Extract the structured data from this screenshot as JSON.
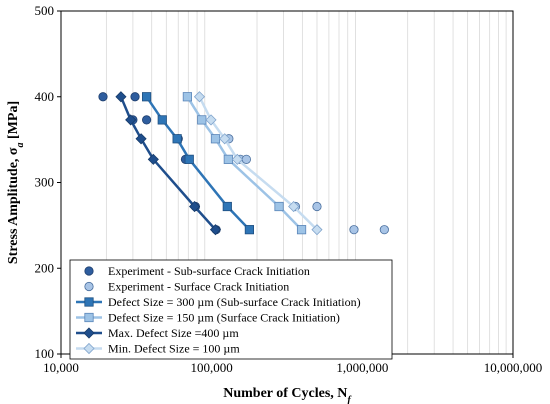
{
  "chart_data": {
    "type": "scatter",
    "xlabel": "Number of Cycles, N",
    "xlabel_sub": "f",
    "ylabel": "Stress Amplitude, σ",
    "ylabel_sub": "a",
    "ylabel_unit": " [MPa]",
    "xscale": "log",
    "xlim": [
      10000,
      10000000
    ],
    "ylim": [
      100,
      500
    ],
    "x_ticks": [
      10000,
      100000,
      1000000,
      10000000
    ],
    "x_tick_labels": [
      "10,000",
      "100,000",
      "1,000,000",
      "10,000,000"
    ],
    "y_ticks": [
      100,
      200,
      300,
      400,
      500
    ],
    "y_tick_labels": [
      "100",
      "200",
      "300",
      "400",
      "500"
    ],
    "grid": "vertical log minor gridlines",
    "legend_placement": "bottom-left",
    "series": [
      {
        "name": "Experiment - Sub-surface Crack Initiation",
        "kind": "points",
        "marker": "circle",
        "color": "#2e5d9e",
        "stroke": "#1f3f6e",
        "points": [
          [
            19000,
            400
          ],
          [
            31000,
            400
          ],
          [
            37000,
            373
          ],
          [
            30000,
            373
          ],
          [
            60000,
            351
          ],
          [
            67000,
            327
          ],
          [
            78000,
            272
          ],
          [
            107000,
            245
          ]
        ]
      },
      {
        "name": "Experiment - Surface Crack Initiation",
        "kind": "points",
        "marker": "circle",
        "color": "#a8c4e6",
        "stroke": "#4a6f9e",
        "points": [
          [
            130000,
            351
          ],
          [
            155000,
            327
          ],
          [
            170000,
            327
          ],
          [
            360000,
            272
          ],
          [
            500000,
            272
          ],
          [
            880000,
            245
          ],
          [
            1400000,
            245
          ]
        ]
      },
      {
        "name": "Defect Size = 300 µm (Sub-surface Crack Initiation)",
        "kind": "line",
        "marker": "square",
        "color": "#2e75b6",
        "stroke": "#1f4f80",
        "points": [
          [
            37000,
            400
          ],
          [
            47000,
            373
          ],
          [
            59000,
            351
          ],
          [
            71000,
            327
          ],
          [
            127000,
            272
          ],
          [
            178000,
            245
          ]
        ]
      },
      {
        "name": "Defect Size = 150 µm (Surface Crack Initiation)",
        "kind": "line",
        "marker": "square",
        "color": "#9dc3e6",
        "stroke": "#5a85b8",
        "points": [
          [
            69000,
            400
          ],
          [
            86000,
            373
          ],
          [
            106000,
            351
          ],
          [
            129000,
            327
          ],
          [
            280000,
            272
          ],
          [
            395000,
            245
          ]
        ]
      },
      {
        "name": "Max. Defect Size =400 µm",
        "kind": "line",
        "marker": "diamond",
        "color": "#1f4e8c",
        "stroke": "#163a68",
        "points": [
          [
            25000,
            400
          ],
          [
            29000,
            373
          ],
          [
            34000,
            351
          ],
          [
            41000,
            327
          ],
          [
            77000,
            272
          ],
          [
            106000,
            245
          ]
        ]
      },
      {
        "name": "Min. Defect Size = 100 µm",
        "kind": "line",
        "marker": "diamond",
        "color": "#c6dcf0",
        "stroke": "#7fa3cc",
        "points": [
          [
            83000,
            400
          ],
          [
            99000,
            373
          ],
          [
            122000,
            351
          ],
          [
            148000,
            327
          ],
          [
            350000,
            272
          ],
          [
            500000,
            245
          ]
        ]
      }
    ]
  }
}
